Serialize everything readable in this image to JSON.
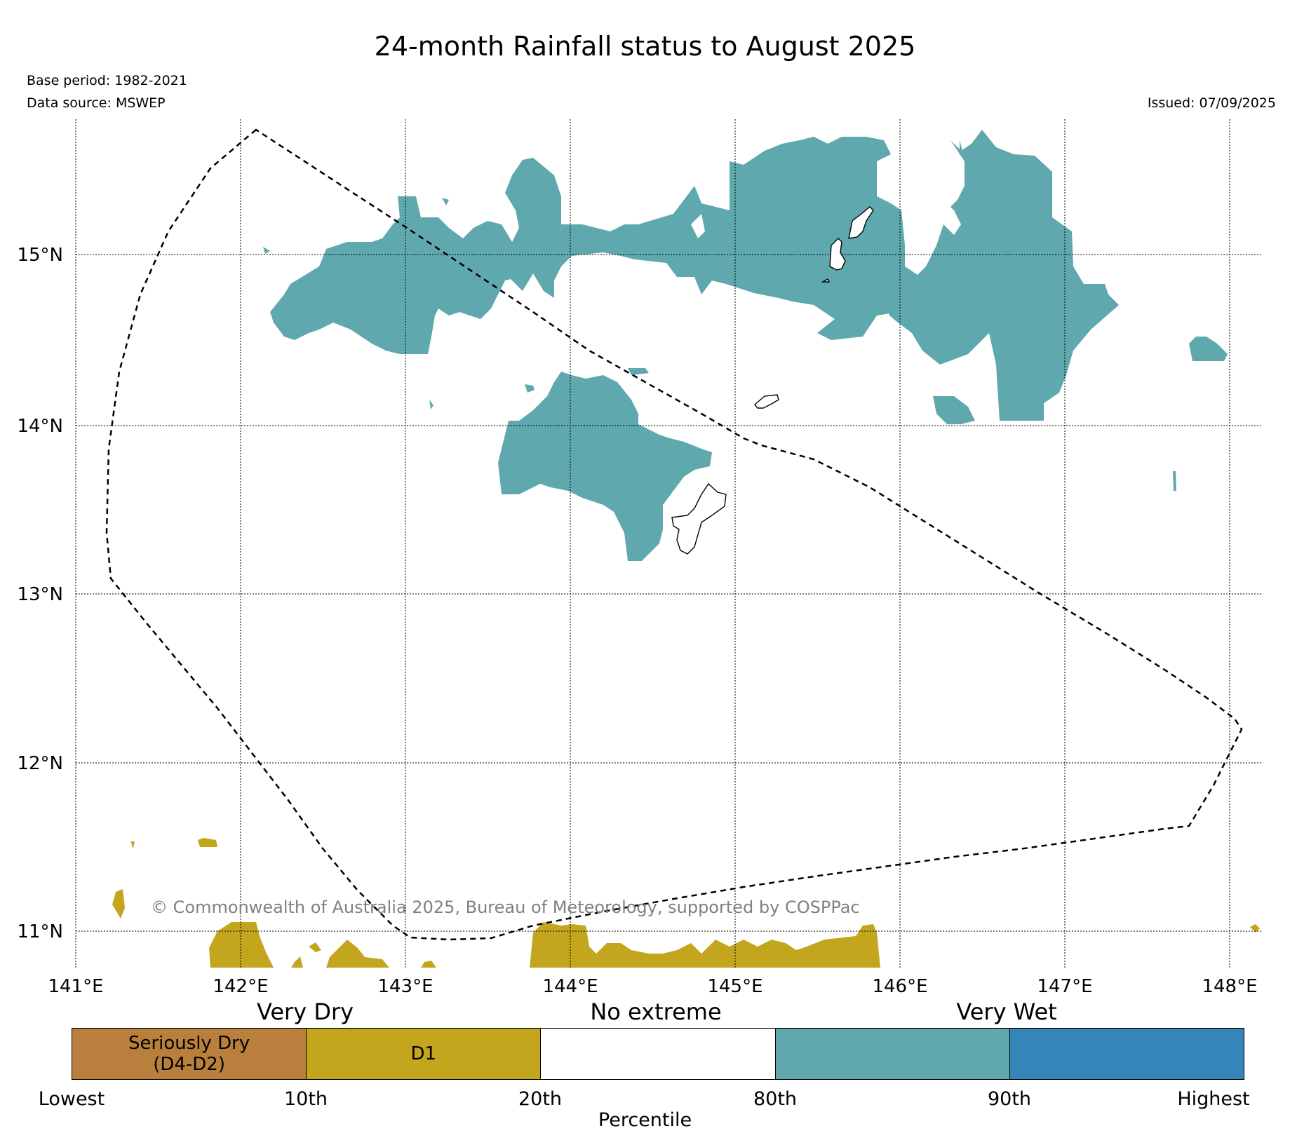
{
  "title": "24-month Rainfall status to August 2025",
  "base_period": "Base period: 1982-2021",
  "data_source": "Data source: MSWEP",
  "issued": "Issued: 07/09/2025",
  "copyright": "© Commonwealth of Australia 2025, Bureau of Meteorology, supported by COSPPac",
  "axes": {
    "x_ticks": [
      "141°E",
      "142°E",
      "143°E",
      "144°E",
      "145°E",
      "146°E",
      "147°E",
      "148°E"
    ],
    "y_ticks": [
      "15°N",
      "14°N",
      "13°N",
      "12°N",
      "11°N"
    ],
    "lon_range": [
      141,
      148.2
    ],
    "lat_range": [
      10.8,
      15.75
    ],
    "grid": true
  },
  "colors": {
    "seriously_dry": "#b8803c",
    "d1": "#c4a51e",
    "no_extreme": "#ffffff",
    "very_wet_80": "#5ea8ae",
    "very_wet_90": "#3585b8"
  },
  "legend": {
    "headers": {
      "dry": "Very Dry",
      "none": "No extreme",
      "wet": "Very Wet"
    },
    "segments": [
      "Seriously Dry\n(D4-D2)",
      "D1",
      "",
      "",
      ""
    ],
    "ticks": [
      "Lowest",
      "10th",
      "20th",
      "80th",
      "90th",
      "Highest"
    ],
    "xlabel": "Percentile"
  }
}
